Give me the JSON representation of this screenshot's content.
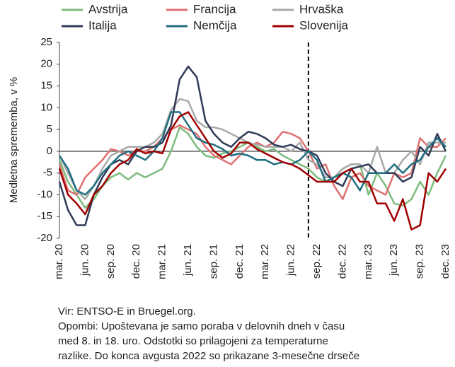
{
  "chart_data": {
    "type": "line",
    "y_label": "Medletna sprememba, v %",
    "categories": [
      "mar. 20",
      null,
      null,
      "jun. 20",
      null,
      null,
      "sep. 20",
      null,
      null,
      "dec. 20",
      null,
      null,
      "mar. 21",
      null,
      null,
      "jun. 21",
      null,
      null,
      "sep. 21",
      null,
      null,
      "dec. 21",
      null,
      null,
      "mar. 22",
      null,
      null,
      "jun. 22",
      null,
      null,
      "sep. 22",
      null,
      null,
      "dec. 22",
      null,
      null,
      "mar. 23",
      null,
      null,
      "jun. 23",
      null,
      null,
      "sep. 23",
      null,
      null,
      "dec. 23"
    ],
    "series": [
      {
        "name": "Avstrija",
        "color": "#7dbb7d",
        "values": [
          -2,
          -7,
          -10,
          -13,
          -11,
          -8,
          -6,
          -5,
          -6.5,
          -5,
          -6,
          -5,
          -4,
          0,
          5.5,
          4,
          1,
          -1,
          -1.5,
          -0.5,
          0,
          1,
          2,
          1,
          0,
          0.5,
          -1,
          -2,
          -3,
          -4,
          -6,
          -7,
          -6,
          -4,
          -3,
          -3,
          -10,
          -5,
          -8,
          -12,
          -12.5,
          -11,
          -7,
          -10,
          -5,
          -1
        ]
      },
      {
        "name": "Francija",
        "color": "#e07070",
        "values": [
          -3,
          -9,
          -10,
          -6,
          -4,
          -2,
          0.5,
          0,
          -1,
          0,
          0,
          1,
          3,
          5,
          6,
          5,
          4,
          1,
          -1,
          -2,
          -3,
          -1,
          1,
          2,
          1,
          2,
          4.5,
          4,
          3,
          0,
          -4,
          -3,
          -8,
          -11,
          -6,
          -5,
          -8,
          -9,
          -10,
          -5,
          -6,
          -5,
          3,
          1,
          1,
          3
        ]
      },
      {
        "name": "Hrvaška",
        "color": "#a9a9a9",
        "values": [
          -1,
          -5,
          -9,
          -11,
          -8,
          -4,
          -1,
          0,
          1,
          1,
          1,
          2,
          4,
          9.5,
          12,
          11.5,
          7,
          5.5,
          5.5,
          5,
          4,
          3,
          2,
          1.5,
          1,
          1,
          1,
          0,
          2,
          -2,
          -3,
          -6,
          -6,
          -4,
          -3,
          -3,
          -5,
          1,
          -5,
          -5,
          -2,
          0,
          -3,
          2,
          2,
          2
        ]
      },
      {
        "name": "Italija",
        "color": "#2f3a56",
        "values": [
          -7,
          -13.5,
          -17,
          -17,
          -10,
          -6,
          -3,
          -2,
          -3,
          0,
          1,
          1,
          2,
          6,
          16.5,
          19.5,
          17,
          7,
          4,
          2,
          1,
          3,
          4.5,
          4,
          3,
          1.5,
          1,
          1.5,
          0.5,
          0,
          -1,
          -5,
          -7,
          -8,
          -4,
          -3.5,
          -3,
          -5,
          -5,
          -5,
          -7,
          -6,
          1,
          -1,
          4,
          0
        ]
      },
      {
        "name": "Nemčija",
        "color": "#1f6e80",
        "values": [
          -1,
          -4,
          -9,
          -10,
          -8,
          -5,
          -3,
          -1,
          0,
          -1,
          -2,
          0,
          3,
          9,
          9,
          6,
          3,
          2,
          1.5,
          0.5,
          -1,
          -0.5,
          -1,
          -2,
          -2,
          -3,
          -2.5,
          -3,
          -2,
          0,
          -2,
          -7,
          -6,
          -5,
          -6,
          -9,
          -5,
          -5,
          -5,
          -3,
          -5,
          -3,
          -2,
          1,
          3,
          1
        ]
      },
      {
        "name": "Slovenija",
        "color": "#a00000",
        "values": [
          -4,
          -10,
          -12,
          -14.5,
          -10,
          -8,
          -5,
          -3,
          -2,
          0.5,
          -0.5,
          0,
          -0.5,
          5,
          8,
          9,
          6,
          3,
          0,
          -1.5,
          -0.5,
          2,
          2,
          0.5,
          -0.5,
          -1.5,
          -2.5,
          -3,
          -4,
          -5.5,
          -7,
          -7,
          -7,
          -5,
          -4,
          -7,
          -7,
          -12,
          -12,
          -16,
          -11,
          -18,
          -17,
          -5,
          -7,
          -4
        ]
      }
    ],
    "ylim": [
      -20,
      25
    ],
    "yticks": [
      -20,
      -15,
      -10,
      -5,
      0,
      5,
      10,
      15,
      20,
      25
    ],
    "grid": false,
    "vline_category_index": 29
  },
  "source": "Vir: ENTSO-E in Bruegel.org.",
  "notes": [
    "Opombi: Upoštevana je samo poraba v delovnih dneh v času",
    "med 8. in 18. uro. Odstotki so prilagojeni za temperaturne",
    "razlike. Do konca avgusta 2022 so prikazane 3-mesečne drseče"
  ]
}
